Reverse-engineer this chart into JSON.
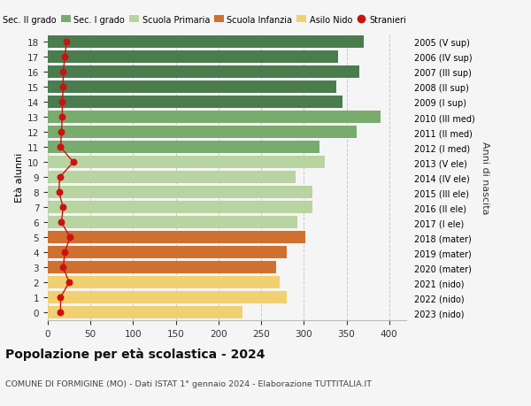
{
  "ages": [
    18,
    17,
    16,
    15,
    14,
    13,
    12,
    11,
    10,
    9,
    8,
    7,
    6,
    5,
    4,
    3,
    2,
    1,
    0
  ],
  "right_labels": [
    "2005 (V sup)",
    "2006 (IV sup)",
    "2007 (III sup)",
    "2008 (II sup)",
    "2009 (I sup)",
    "2010 (III med)",
    "2011 (II med)",
    "2012 (I med)",
    "2013 (V ele)",
    "2014 (IV ele)",
    "2015 (III ele)",
    "2016 (II ele)",
    "2017 (I ele)",
    "2018 (mater)",
    "2019 (mater)",
    "2020 (mater)",
    "2021 (nido)",
    "2022 (nido)",
    "2023 (nido)"
  ],
  "bar_values": [
    370,
    340,
    365,
    338,
    345,
    390,
    362,
    318,
    325,
    290,
    310,
    310,
    292,
    302,
    280,
    268,
    272,
    280,
    228
  ],
  "bar_colors": [
    "#4a7c4e",
    "#4a7c4e",
    "#4a7c4e",
    "#4a7c4e",
    "#4a7c4e",
    "#7aab6e",
    "#7aab6e",
    "#7aab6e",
    "#b8d4a0",
    "#b8d4a0",
    "#b8d4a0",
    "#b8d4a0",
    "#b8d4a0",
    "#d07030",
    "#d07030",
    "#d07030",
    "#f0d070",
    "#f0d070",
    "#f0d070"
  ],
  "stranieri_values": [
    22,
    20,
    18,
    18,
    17,
    17,
    16,
    15,
    30,
    14,
    13,
    18,
    16,
    26,
    20,
    18,
    25,
    15,
    15
  ],
  "title": "Popolazione per età scolastica - 2024",
  "subtitle": "COMUNE DI FORMIGINE (MO) - Dati ISTAT 1° gennaio 2024 - Elaborazione TUTTITALIA.IT",
  "ylabel_left": "Età alunni",
  "ylabel_right": "Anni di nascita",
  "xlim": [
    0,
    420
  ],
  "xticks": [
    0,
    50,
    100,
    150,
    200,
    250,
    300,
    350,
    400
  ],
  "legend_labels": [
    "Sec. II grado",
    "Sec. I grado",
    "Scuola Primaria",
    "Scuola Infanzia",
    "Asilo Nido",
    "Stranieri"
  ],
  "legend_colors": [
    "#4a7c4e",
    "#7aab6e",
    "#b8d4a0",
    "#d07030",
    "#f0d070",
    "#cc1111"
  ],
  "bg_color": "#f5f5f5",
  "bar_height": 0.82
}
